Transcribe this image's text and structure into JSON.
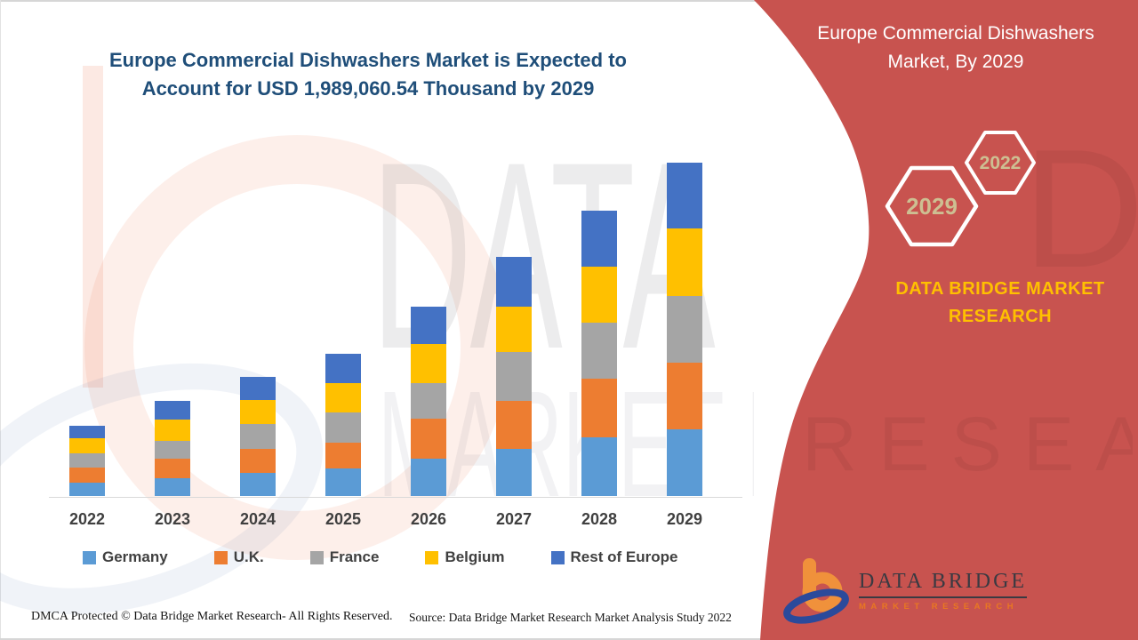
{
  "header": {
    "title_lines": [
      "Europe Commercial Dishwashers Market is Expected to",
      "Account for USD 1,989,060.54 Thousand by 2029"
    ],
    "title_color": "#1F4E79"
  },
  "side_panel": {
    "title_lines": [
      "Europe Commercial Dishwashers",
      "Market, By 2029"
    ],
    "year_badges": [
      "2029",
      "2022"
    ],
    "brand_lines": [
      "DATA BRIDGE MARKET",
      "RESEARCH"
    ],
    "logo": {
      "name": "DATA BRIDGE",
      "tagline": "MARKET RESEARCH"
    },
    "colors": {
      "background": "#C8534F",
      "badge_text": "#CDBF92",
      "brand_text": "#FFC000"
    }
  },
  "chart_data": {
    "type": "bar",
    "stacked": true,
    "title": "Europe Commercial Dishwashers Market is Expected to Account for USD 1,989,060.54 Thousand by 2029",
    "categories": [
      "2022",
      "2023",
      "2024",
      "2025",
      "2026",
      "2027",
      "2028",
      "2029"
    ],
    "series": [
      {
        "name": "Germany",
        "color": "#5B9BD5",
        "values": [
          79500,
          106100,
          137900,
          164400,
          222800,
          281100,
          350100,
          397800
        ]
      },
      {
        "name": "U.K.",
        "color": "#ED7D31",
        "values": [
          90200,
          116700,
          143200,
          153800,
          238700,
          286400,
          350100,
          397800
        ]
      },
      {
        "name": "France",
        "color": "#A5A5A5",
        "values": [
          84900,
          106100,
          148500,
          180300,
          212200,
          291700,
          334200,
          397800
        ]
      },
      {
        "name": "Belgium",
        "color": "#FFC000",
        "values": [
          90200,
          127300,
          143200,
          175000,
          233400,
          270500,
          334200,
          403100
        ]
      },
      {
        "name": "Rest of Europe",
        "color": "#4472C4",
        "values": [
          74300,
          111400,
          137900,
          175000,
          222800,
          297000,
          334200,
          392560
        ]
      }
    ],
    "value_unit": "USD Thousand",
    "values_estimated_from_bar_heights": true,
    "total_2029": 1989060.54,
    "xlabel": "",
    "ylabel": "",
    "y_axis_visible": false,
    "gridlines": false,
    "legend_position": "bottom"
  },
  "footer": {
    "dmca": "DMCA Protected © Data Bridge Market Research- All Rights Reserved.",
    "source": "Source: Data Bridge Market Research Market Analysis Study 2022"
  },
  "watermarks": {
    "center_text_1": "DATA BRI",
    "center_text_2": "MARKET RE",
    "panel_text_1": "DGE",
    "panel_text_2": "RESEARCH"
  }
}
